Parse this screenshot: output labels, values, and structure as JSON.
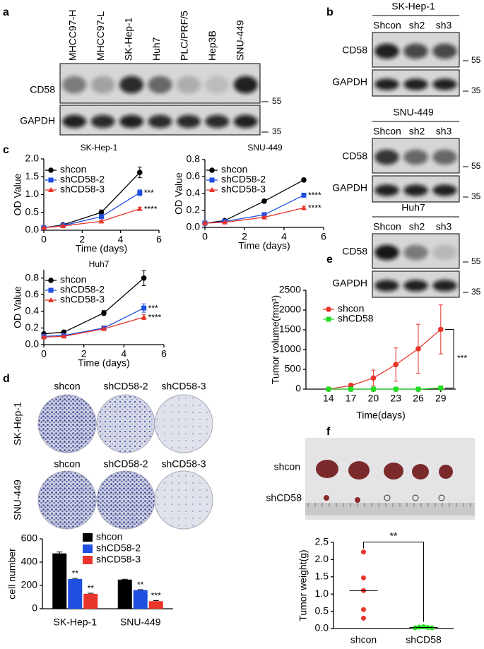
{
  "panel_labels": [
    "a",
    "b",
    "c",
    "d",
    "e",
    "f"
  ],
  "blot_a": {
    "cell_lines": [
      "MHCC97-H",
      "MHCC97-L",
      "SK-Hep-1",
      "Huh7",
      "PLC/PRF/5",
      "Hep3B",
      "SNU-449"
    ],
    "rows": [
      "CD58",
      "GAPDH"
    ],
    "markers": [
      "55",
      "35"
    ]
  },
  "blot_b": [
    {
      "title": "SK-Hep-1",
      "lanes": [
        "Shcon",
        "sh2",
        "sh3"
      ],
      "rows": [
        "CD58",
        "GAPDH"
      ],
      "markers": [
        "55",
        "35"
      ]
    },
    {
      "title": "SNU-449",
      "lanes": [
        "Shcon",
        "sh2",
        "sh3"
      ],
      "rows": [
        "CD58",
        "GAPDH"
      ],
      "markers": [
        "55",
        "35"
      ]
    },
    {
      "title": "Huh7",
      "lanes": [
        "Shcon",
        "sh2",
        "sh3"
      ],
      "rows": [
        "CD58",
        "GAPDH"
      ],
      "markers": [
        "55",
        "35"
      ]
    }
  ],
  "colony": {
    "columns": [
      "shcon",
      "shCD58-2",
      "shCD58-3"
    ],
    "rows": [
      "SK-Hep-1",
      "SNU-449"
    ]
  },
  "photo": {
    "rows": [
      "shcon",
      "shCD58"
    ]
  },
  "chart_data": [
    {
      "type": "line",
      "title": "SK-Hep-1",
      "xlabel": "Time (days)",
      "ylabel": "OD Value",
      "x": [
        0,
        1,
        3,
        5
      ],
      "xlim": [
        0,
        6
      ],
      "xticks": [
        0,
        2,
        4,
        6
      ],
      "ylim": [
        0,
        2.0
      ],
      "yticks": [
        {
          "value": 0,
          "label": "0.0"
        },
        0.5,
        {
          "value": 1,
          "label": "1.0"
        },
        1.5,
        {
          "value": 2,
          "label": "2.0"
        }
      ],
      "series": [
        {
          "name": "shcon",
          "color": "#000000",
          "marker": "circle",
          "values": [
            0.07,
            0.15,
            0.5,
            1.62
          ],
          "errors": [
            0.01,
            0.02,
            0.07,
            0.15
          ]
        },
        {
          "name": "shCD58-2",
          "color": "#1f4fe0",
          "marker": "square",
          "values": [
            0.07,
            0.13,
            0.38,
            1.05
          ],
          "errors": [
            0.01,
            0.02,
            0.04,
            0.08
          ],
          "significance": "***"
        },
        {
          "name": "shCD58-3",
          "color": "#e8342a",
          "marker": "triangle",
          "values": [
            0.07,
            0.12,
            0.25,
            0.6
          ],
          "errors": [
            0.01,
            0.01,
            0.02,
            0.04
          ],
          "significance": "****"
        }
      ]
    },
    {
      "type": "line",
      "title": "SNU-449",
      "xlabel": "Time (days)",
      "ylabel": "OD Value",
      "x": [
        0,
        1,
        3,
        5
      ],
      "xlim": [
        0,
        6
      ],
      "xticks": [
        0,
        2,
        4,
        6
      ],
      "ylim": [
        0,
        0.8
      ],
      "yticks": [
        {
          "value": 0,
          "label": "0.0"
        },
        0.2,
        0.4,
        0.6,
        0.8
      ],
      "series": [
        {
          "name": "shcon",
          "color": "#000000",
          "marker": "circle",
          "values": [
            0.05,
            0.08,
            0.31,
            0.56
          ],
          "errors": [
            0.005,
            0.01,
            0.02,
            0.02
          ]
        },
        {
          "name": "shCD58-2",
          "color": "#1f4fe0",
          "marker": "square",
          "values": [
            0.05,
            0.07,
            0.15,
            0.38
          ],
          "errors": [
            0.005,
            0.005,
            0.01,
            0.02
          ],
          "significance": "****"
        },
        {
          "name": "shCD58-3",
          "color": "#e8342a",
          "marker": "triangle",
          "values": [
            0.05,
            0.06,
            0.12,
            0.23
          ],
          "errors": [
            0.005,
            0.005,
            0.01,
            0.02
          ],
          "significance": "****"
        }
      ]
    },
    {
      "type": "line",
      "title": "Huh7",
      "xlabel": "Time  (days)",
      "ylabel": "OD Value",
      "x": [
        0,
        1,
        3,
        5
      ],
      "xlim": [
        0,
        6
      ],
      "xticks": [
        0,
        2,
        4,
        6
      ],
      "ylim": [
        0,
        0.9
      ],
      "yticks": [
        {
          "value": 0,
          "label": "0.0"
        },
        0.2,
        0.4,
        0.6,
        0.8
      ],
      "series": [
        {
          "name": "shcon",
          "color": "#000000",
          "marker": "circle",
          "values": [
            0.13,
            0.15,
            0.38,
            0.8
          ],
          "errors": [
            0.01,
            0.01,
            0.03,
            0.09
          ]
        },
        {
          "name": "shCD58-2",
          "color": "#1f4fe0",
          "marker": "square",
          "values": [
            0.1,
            0.11,
            0.2,
            0.44
          ],
          "errors": [
            0.01,
            0.01,
            0.01,
            0.05
          ],
          "significance": "***"
        },
        {
          "name": "shCD58-3",
          "color": "#e8342a",
          "marker": "triangle",
          "values": [
            0.09,
            0.1,
            0.19,
            0.33
          ],
          "errors": [
            0.01,
            0.01,
            0.01,
            0.03
          ],
          "significance": "****"
        }
      ]
    },
    {
      "type": "bar",
      "ylabel": "cell number",
      "categories": [
        "SK-Hep-1",
        "SNU-449"
      ],
      "ylim": [
        0,
        600
      ],
      "yticks": [
        0,
        200,
        400,
        600
      ],
      "series": [
        {
          "name": "shcon",
          "color": "#000000",
          "values": [
            475,
            250
          ],
          "errors": [
            12,
            3
          ]
        },
        {
          "name": "shCD58-2",
          "color": "#1f4fe0",
          "values": [
            255,
            160
          ],
          "errors": [
            6,
            4
          ],
          "significance": [
            "**",
            "**"
          ]
        },
        {
          "name": "shCD58-3",
          "color": "#e8342a",
          "values": [
            128,
            65
          ],
          "errors": [
            5,
            5
          ],
          "significance": [
            "**",
            "***"
          ]
        }
      ]
    },
    {
      "type": "line",
      "xlabel": "Time(days)",
      "ylabel": "Tumor volume(mm³)",
      "x": [
        14,
        17,
        20,
        23,
        26,
        29
      ],
      "xlim": [
        11,
        31
      ],
      "xticks": [
        14,
        17,
        20,
        23,
        26,
        29
      ],
      "ylim": [
        0,
        2500
      ],
      "yticks": [
        0,
        500,
        1000,
        1500,
        2000,
        2500
      ],
      "significance": "***",
      "series": [
        {
          "name": "shcon",
          "color": "#e8342a",
          "marker": "circle",
          "values": [
            0,
            90,
            280,
            620,
            1020,
            1510
          ],
          "errors": [
            0,
            60,
            200,
            420,
            620,
            620
          ]
        },
        {
          "name": "shCD58",
          "color": "#22dd22",
          "marker": "square",
          "values": [
            0,
            0,
            0,
            0,
            0,
            30
          ],
          "errors": [
            0,
            0,
            0,
            0,
            0,
            20
          ]
        }
      ]
    },
    {
      "type": "strip",
      "ylabel": "Tumor weight(g)",
      "categories": [
        "shcon",
        "shCD58"
      ],
      "colors": [
        "#e8342a",
        "#22dd22"
      ],
      "values": [
        [
          2.22,
          1.47,
          1.1,
          0.55,
          0.3
        ],
        [
          0.02,
          0.04,
          0.05,
          0.03,
          0.02
        ]
      ],
      "means": [
        1.1,
        0.03
      ],
      "ylim": [
        0,
        2.5
      ],
      "yticks": [
        {
          "value": 0,
          "label": "0.0"
        },
        0.5,
        {
          "value": 1,
          "label": "1.0"
        },
        1.5,
        {
          "value": 2,
          "label": "2.0"
        },
        2.5
      ],
      "significance": "**"
    }
  ]
}
